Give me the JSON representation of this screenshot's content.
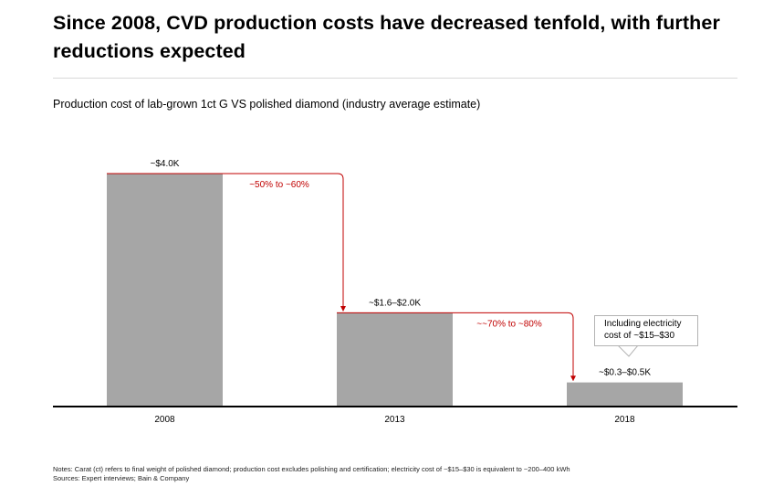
{
  "title": "Since 2008, CVD production costs have decreased tenfold, with further reductions expected",
  "subtitle": "Production cost of lab-grown 1ct G VS polished diamond (industry average estimate)",
  "chart_data": {
    "type": "bar",
    "categories": [
      "2008",
      "2013",
      "2018"
    ],
    "values": [
      4.0,
      1.6,
      0.4
    ],
    "value_unit": "$K",
    "data_labels": [
      "~$4.0K",
      "~$1.6–$2.0K",
      "~$0.3–$0.5K"
    ],
    "ylim": [
      0,
      4.0
    ],
    "grid": false,
    "annotations": [
      {
        "from": "2008",
        "to": "2013",
        "text": "~50% to ~60%"
      },
      {
        "from": "2013",
        "to": "2018",
        "text": "~~70% to ~80%"
      }
    ],
    "callout": {
      "target": "2018",
      "lines": [
        "Including electricity",
        "cost of ~$15–$30"
      ]
    },
    "colors": {
      "bar": "#a6a6a6",
      "annotation": "#c00000",
      "axis": "#000000"
    }
  },
  "notes": [
    "Notes: Carat (ct) refers to final weight of polished diamond; production cost excludes polishing and certification; electricity cost of ~$15–$30 is equivalent to ~200–400 kWh",
    "Sources: Expert interviews; Bain & Company"
  ]
}
